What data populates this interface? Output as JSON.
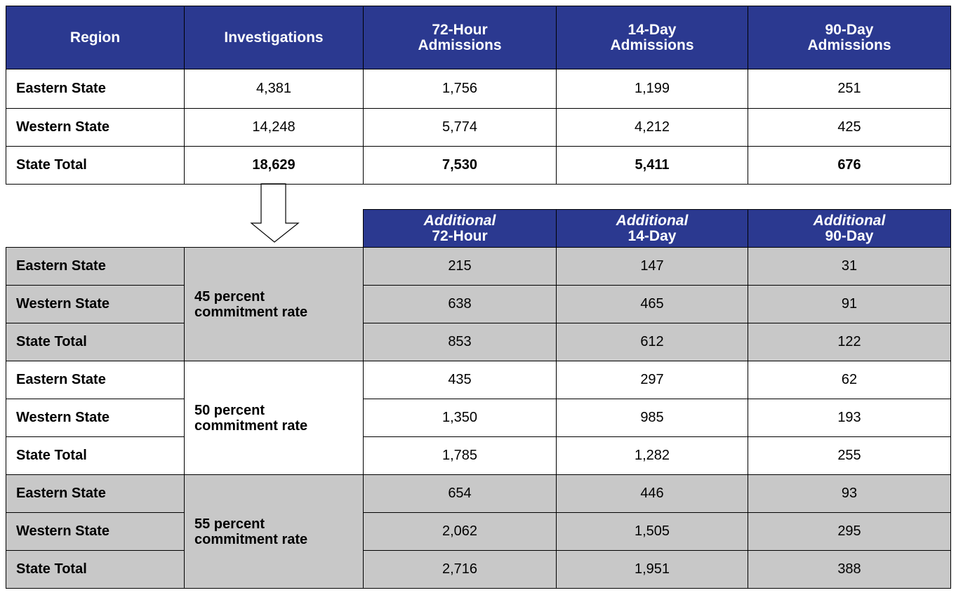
{
  "top_table": {
    "headers": [
      [
        "Region"
      ],
      [
        "Investigations"
      ],
      [
        "72-Hour",
        "Admissions"
      ],
      [
        "14-Day",
        "Admissions"
      ],
      [
        "90-Day",
        "Admissions"
      ]
    ],
    "rows": [
      [
        "Eastern State",
        "4,381",
        "1,756",
        "1,199",
        "251"
      ],
      [
        "Western State",
        "14,248",
        "5,774",
        "4,212",
        "425"
      ],
      [
        "State Total",
        "18,629",
        "7,530",
        "5,411",
        "676"
      ]
    ]
  },
  "bottom_table": {
    "headers": [
      [
        "Additional",
        "72-Hour"
      ],
      [
        "Additional",
        "14-Day"
      ],
      [
        "Additional",
        "90-Day"
      ]
    ],
    "groups": [
      {
        "label": [
          "45 percent",
          "commitment rate"
        ],
        "rows": [
          [
            "Eastern State",
            "215",
            "147",
            "31"
          ],
          [
            "Western State",
            "638",
            "465",
            "91"
          ],
          [
            "State Total",
            "853",
            "612",
            "122"
          ]
        ]
      },
      {
        "label": [
          "50 percent",
          "commitment rate"
        ],
        "rows": [
          [
            "Eastern State",
            "435",
            "297",
            "62"
          ],
          [
            "Western State",
            "1,350",
            "985",
            "193"
          ],
          [
            "State Total",
            "1,785",
            "1,282",
            "255"
          ]
        ]
      },
      {
        "label": [
          "55 percent",
          "commitment rate"
        ],
        "rows": [
          [
            "Eastern State",
            "654",
            "446",
            "93"
          ],
          [
            "Western State",
            "2,062",
            "1,505",
            "295"
          ],
          [
            "State Total",
            "2,716",
            "1,951",
            "388"
          ]
        ]
      }
    ]
  }
}
